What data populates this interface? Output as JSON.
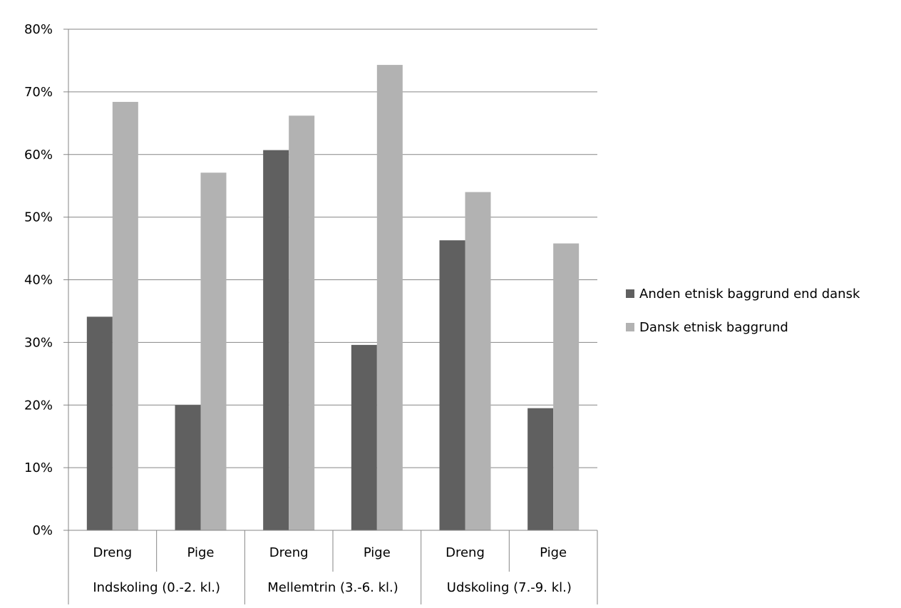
{
  "chart_data": {
    "type": "bar",
    "title": "",
    "groups": [
      {
        "label": "Indskoling (0.-2. kl.)",
        "categories": [
          "Dreng",
          "Pige"
        ]
      },
      {
        "label": "Mellemtrin (3.-6. kl.)",
        "categories": [
          "Dreng",
          "Pige"
        ]
      },
      {
        "label": "Udskoling (7.-9. kl.)",
        "categories": [
          "Dreng",
          "Pige"
        ]
      }
    ],
    "categories": [
      "Dreng",
      "Pige",
      "Dreng",
      "Pige",
      "Dreng",
      "Pige"
    ],
    "series": [
      {
        "name": "Anden etnisk baggrund end dansk",
        "color": "#606060",
        "values": [
          34.1,
          20.0,
          60.7,
          29.6,
          46.3,
          19.5
        ]
      },
      {
        "name": "Dansk etnisk baggrund",
        "color": "#b2b2b2",
        "values": [
          68.4,
          57.1,
          66.2,
          74.3,
          54.0,
          45.8
        ]
      }
    ],
    "ylim": [
      0,
      80
    ],
    "yticks": [
      "0%",
      "10%",
      "20%",
      "30%",
      "40%",
      "50%",
      "60%",
      "70%",
      "80%"
    ],
    "grid": true,
    "legend_position": "right"
  }
}
